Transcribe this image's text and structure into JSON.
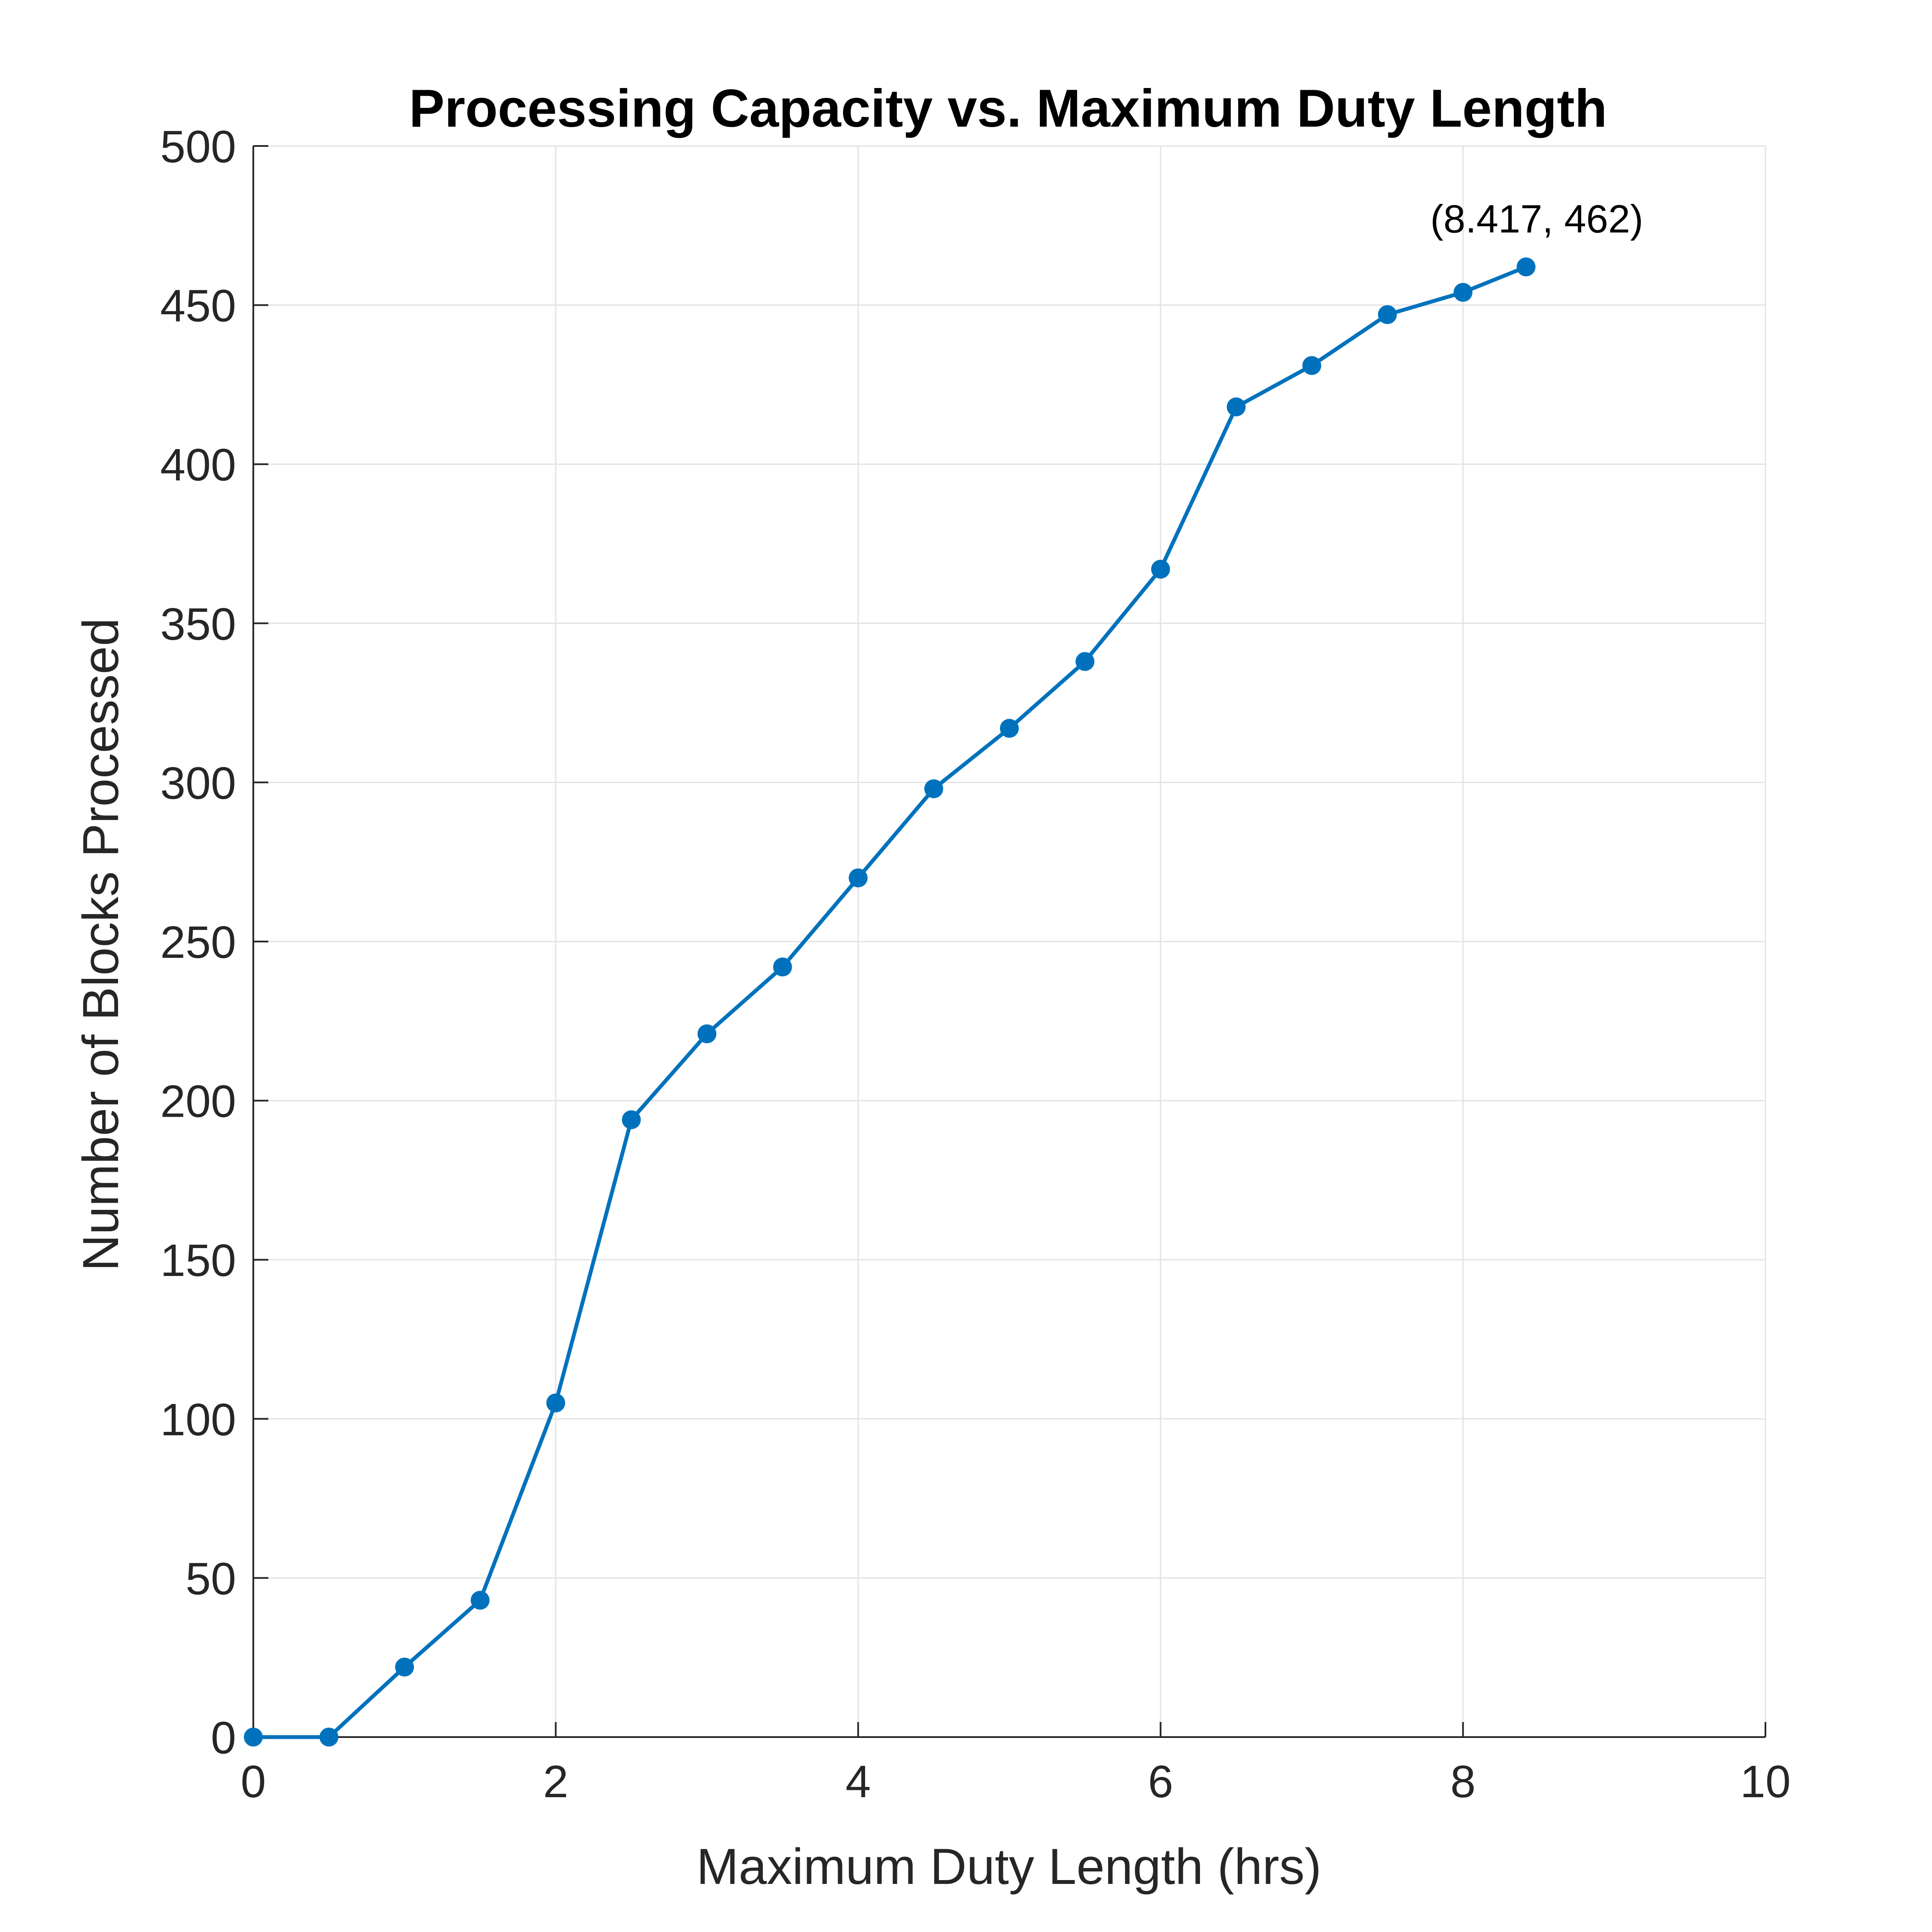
{
  "chart_data": {
    "type": "line",
    "title": "Processing Capacity vs. Maximum Duty Length",
    "xlabel": "Maximum Duty Length (hrs)",
    "ylabel": "Number of Blocks Processed",
    "xlim": [
      0,
      10
    ],
    "ylim": [
      0,
      500
    ],
    "xticks": [
      0,
      2,
      4,
      6,
      8,
      10
    ],
    "yticks": [
      0,
      50,
      100,
      150,
      200,
      250,
      300,
      350,
      400,
      450,
      500
    ],
    "grid": true,
    "colors": {
      "line": "#0072BD",
      "axis": "#262626",
      "grid": "#e3e3e3"
    },
    "series": [
      {
        "x": [
          0,
          0.5,
          1,
          1.5,
          2,
          2.5,
          3,
          3.5,
          4,
          4.5,
          5,
          5.5,
          6,
          6.5,
          7,
          7.5,
          8,
          8.417
        ],
        "y": [
          0,
          0,
          22,
          43,
          105,
          194,
          221,
          242,
          270,
          298,
          317,
          338,
          367,
          418,
          431,
          447,
          454,
          462
        ]
      }
    ],
    "annotations": [
      {
        "text": "(8.417, 462)",
        "x": 8.417,
        "y": 462
      }
    ]
  }
}
